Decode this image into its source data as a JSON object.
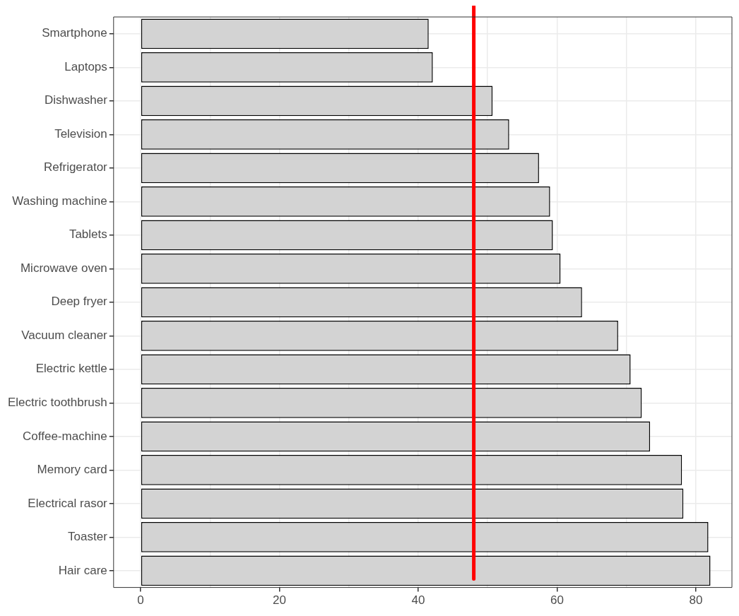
{
  "chart_data": {
    "type": "bar",
    "orientation": "horizontal",
    "categories": [
      "Smartphone",
      "Laptops",
      "Dishwasher",
      "Television",
      "Refrigerator",
      "Washing machine",
      "Tablets",
      "Microwave oven",
      "Deep fryer",
      "Vacuum cleaner",
      "Electric kettle",
      "Electric toothbrush",
      "Coffee-machine",
      "Memory card",
      "Electrical rasor",
      "Toaster",
      "Hair care"
    ],
    "values": [
      41.5,
      42.1,
      50.7,
      53.1,
      57.4,
      59.0,
      59.4,
      60.5,
      63.6,
      68.8,
      70.6,
      72.2,
      73.4,
      78.0,
      78.2,
      81.8,
      82.1
    ],
    "color": "#d3d3d3",
    "xlim": [
      -3.9,
      85.2
    ],
    "xticks": [
      0,
      {
        "value": 10,
        "label": null
      },
      20,
      {
        "value": 30,
        "label": null
      },
      40,
      {
        "value": 50,
        "label": null
      },
      60,
      {
        "value": 70,
        "label": null
      },
      80
    ],
    "grid": true,
    "ref_lines": [
      {
        "axis": "x",
        "value": 48,
        "color": "#ff0000"
      }
    ]
  }
}
